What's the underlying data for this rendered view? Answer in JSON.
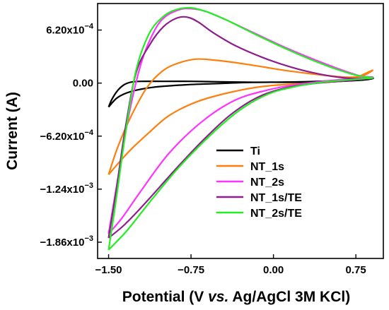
{
  "chart_data": {
    "type": "line",
    "title": "",
    "xlabel_parts": [
      "Potential (V ",
      "vs.",
      " Ag/AgCl 3M KCl)"
    ],
    "ylabel": "Current (A)",
    "xlim": [
      -1.6,
      1.0
    ],
    "ylim": [
      -0.00205,
      0.00093
    ],
    "x_ticks": [
      {
        "value": -1.5,
        "label": "-1.50"
      },
      {
        "value": -0.75,
        "label": "-0.75"
      },
      {
        "value": 0.0,
        "label": "0.00"
      },
      {
        "value": 0.75,
        "label": "0.75"
      }
    ],
    "y_ticks": [
      {
        "value": 0.00062,
        "mantissa": "6.20x10",
        "exp": "-4"
      },
      {
        "value": 0.0,
        "mantissa": "0.00",
        "exp": ""
      },
      {
        "value": -0.00062,
        "mantissa": "-6.20x10",
        "exp": "-4"
      },
      {
        "value": -0.00124,
        "mantissa": "-1.24x10",
        "exp": "-3"
      },
      {
        "value": -0.00186,
        "mantissa": "-1.86x10",
        "exp": "-3"
      }
    ],
    "legend_position": "bottom-right",
    "series": [
      {
        "name": "Ti",
        "color": "#000000",
        "points": [
          [
            -1.5,
            -0.00028
          ],
          [
            -1.47,
            -0.00019
          ],
          [
            -1.42,
            -9e-05
          ],
          [
            -1.36,
            -2e-05
          ],
          [
            -1.3,
            1e-05
          ],
          [
            -1.2,
            2e-05
          ],
          [
            -1.0,
            2e-05
          ],
          [
            -0.75,
            2e-05
          ],
          [
            -0.5,
            1.5e-05
          ],
          [
            -0.25,
            1e-05
          ],
          [
            0.0,
            1e-05
          ],
          [
            0.3,
            1e-05
          ],
          [
            0.6,
            2e-05
          ],
          [
            0.85,
            4e-05
          ],
          [
            0.9,
            6e-05
          ],
          [
            0.7,
            3.5e-05
          ],
          [
            0.4,
            2e-05
          ],
          [
            0.1,
            1.2e-05
          ],
          [
            -0.2,
            8e-06
          ],
          [
            -0.5,
            -5e-06
          ],
          [
            -0.8,
            -2e-05
          ],
          [
            -1.1,
            -5e-05
          ],
          [
            -1.3,
            -0.0001
          ],
          [
            -1.42,
            -0.00017
          ],
          [
            -1.5,
            -0.00028
          ]
        ]
      },
      {
        "name": "NT_1s",
        "color": "#ff7f0e",
        "points": [
          [
            -1.5,
            -0.00107
          ],
          [
            -1.42,
            -0.00076
          ],
          [
            -1.3,
            -0.0004
          ],
          [
            -1.15,
            -5e-05
          ],
          [
            -1.0,
            0.00015
          ],
          [
            -0.85,
            0.00024
          ],
          [
            -0.7,
            0.00028
          ],
          [
            -0.55,
            0.00027
          ],
          [
            -0.35,
            0.00024
          ],
          [
            -0.1,
            0.00019
          ],
          [
            0.15,
            0.00014
          ],
          [
            0.4,
            0.0001
          ],
          [
            0.65,
            7e-05
          ],
          [
            0.8,
            8e-05
          ],
          [
            0.9,
            0.00015
          ],
          [
            0.7,
            4e-05
          ],
          [
            0.5,
            1e-05
          ],
          [
            0.2,
            -1e-05
          ],
          [
            -0.1,
            -4e-05
          ],
          [
            -0.4,
            -0.00011
          ],
          [
            -0.7,
            -0.00022
          ],
          [
            -0.95,
            -0.00038
          ],
          [
            -1.15,
            -0.0006
          ],
          [
            -1.3,
            -0.00078
          ],
          [
            -1.42,
            -0.00095
          ],
          [
            -1.5,
            -0.00107
          ]
        ]
      },
      {
        "name": "NT_2s",
        "color": "#ff33ff",
        "points": [
          [
            -1.5,
            -0.00176
          ],
          [
            -1.42,
            -0.00115
          ],
          [
            -1.32,
            -0.0004
          ],
          [
            -1.2,
            0.00025
          ],
          [
            -1.08,
            0.00062
          ],
          [
            -0.98,
            0.00078
          ],
          [
            -0.85,
            0.00086
          ],
          [
            -0.75,
            0.00087
          ],
          [
            -0.62,
            0.00084
          ],
          [
            -0.45,
            0.00075
          ],
          [
            -0.2,
            0.0006
          ],
          [
            0.1,
            0.00042
          ],
          [
            0.4,
            0.00026
          ],
          [
            0.65,
            0.00014
          ],
          [
            0.8,
            8e-05
          ],
          [
            0.9,
            7e-05
          ],
          [
            0.7,
            5e-05
          ],
          [
            0.45,
            2e-05
          ],
          [
            0.2,
            -2e-05
          ],
          [
            -0.05,
            -8e-05
          ],
          [
            -0.35,
            -0.0002
          ],
          [
            -0.65,
            -0.00045
          ],
          [
            -0.95,
            -0.00082
          ],
          [
            -1.2,
            -0.00125
          ],
          [
            -1.38,
            -0.00158
          ],
          [
            -1.5,
            -0.00176
          ]
        ]
      },
      {
        "name": "NT_1s/TE",
        "color": "#8e1e8e",
        "points": [
          [
            -1.5,
            -0.00181
          ],
          [
            -1.43,
            -0.00125
          ],
          [
            -1.35,
            -0.00055
          ],
          [
            -1.25,
            0.00012
          ],
          [
            -1.12,
            0.00046
          ],
          [
            -1.0,
            0.00066
          ],
          [
            -0.88,
            0.00076
          ],
          [
            -0.78,
            0.00077
          ],
          [
            -0.68,
            0.00071
          ],
          [
            -0.55,
            0.00059
          ],
          [
            -0.35,
            0.00044
          ],
          [
            -0.1,
            0.0003
          ],
          [
            0.15,
            0.00019
          ],
          [
            0.4,
            0.00011
          ],
          [
            0.65,
            6e-05
          ],
          [
            0.85,
            5e-05
          ],
          [
            0.9,
            6e-05
          ],
          [
            0.7,
            3e-05
          ],
          [
            0.4,
            0.0
          ],
          [
            0.1,
            -6e-05
          ],
          [
            -0.15,
            -0.00017
          ],
          [
            -0.4,
            -0.00038
          ],
          [
            -0.65,
            -0.00068
          ],
          [
            -0.9,
            -0.00102
          ],
          [
            -1.15,
            -0.00138
          ],
          [
            -1.35,
            -0.00165
          ],
          [
            -1.5,
            -0.00181
          ]
        ]
      },
      {
        "name": "NT_2s/TE",
        "color": "#22ee22",
        "points": [
          [
            -1.5,
            -0.00195
          ],
          [
            -1.43,
            -0.00135
          ],
          [
            -1.35,
            -0.00062
          ],
          [
            -1.25,
            0.00015
          ],
          [
            -1.13,
            0.00058
          ],
          [
            -1.0,
            0.00078
          ],
          [
            -0.88,
            0.00086
          ],
          [
            -0.75,
            0.00088
          ],
          [
            -0.6,
            0.00083
          ],
          [
            -0.4,
            0.00072
          ],
          [
            -0.15,
            0.00056
          ],
          [
            0.15,
            0.00038
          ],
          [
            0.45,
            0.00022
          ],
          [
            0.7,
            0.00011
          ],
          [
            0.85,
            7e-05
          ],
          [
            0.9,
            6e-05
          ],
          [
            0.7,
            4e-05
          ],
          [
            0.45,
            1e-05
          ],
          [
            0.2,
            -4e-05
          ],
          [
            -0.05,
            -0.00013
          ],
          [
            -0.3,
            -0.00031
          ],
          [
            -0.55,
            -0.00058
          ],
          [
            -0.85,
            -0.00097
          ],
          [
            -1.1,
            -0.00135
          ],
          [
            -1.33,
            -0.00172
          ],
          [
            -1.5,
            -0.00195
          ]
        ]
      }
    ]
  }
}
